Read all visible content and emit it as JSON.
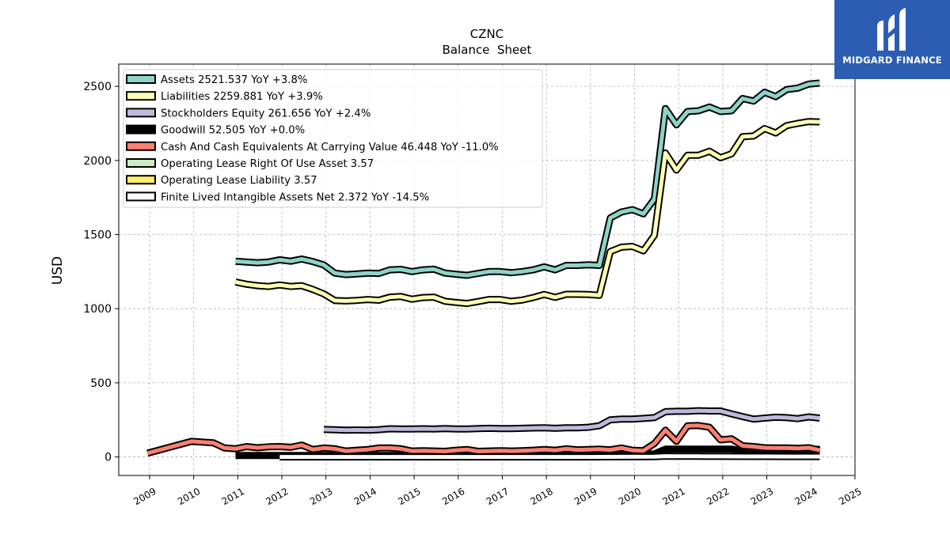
{
  "chart_data": {
    "type": "line",
    "title": "CZNC",
    "subtitle": "Balance  Sheet",
    "ylabel": "USD",
    "xlabel": "",
    "xlim": [
      2008.3,
      2025.0
    ],
    "ylim": [
      -125,
      2650
    ],
    "x_ticks": [
      "2009",
      "2010",
      "2011",
      "2012",
      "2013",
      "2014",
      "2015",
      "2016",
      "2017",
      "2018",
      "2019",
      "2020",
      "2021",
      "2022",
      "2023",
      "2024",
      "2025"
    ],
    "y_ticks": [
      0,
      500,
      1000,
      1500,
      2000,
      2500
    ],
    "grid": true,
    "legend_position": "top-left",
    "series": [
      {
        "name": "Assets  2521.537 YoY +3.8%",
        "color": "#8dd3c7",
        "points": [
          [
            2010.95,
            1320
          ],
          [
            2011.2,
            1315
          ],
          [
            2011.45,
            1310
          ],
          [
            2011.7,
            1315
          ],
          [
            2011.95,
            1330
          ],
          [
            2012.2,
            1320
          ],
          [
            2012.45,
            1335
          ],
          [
            2012.7,
            1318
          ],
          [
            2012.95,
            1295
          ],
          [
            2013.2,
            1240
          ],
          [
            2013.45,
            1230
          ],
          [
            2013.7,
            1235
          ],
          [
            2013.95,
            1240
          ],
          [
            2014.2,
            1238
          ],
          [
            2014.45,
            1262
          ],
          [
            2014.7,
            1265
          ],
          [
            2014.95,
            1250
          ],
          [
            2015.2,
            1262
          ],
          [
            2015.45,
            1266
          ],
          [
            2015.7,
            1240
          ],
          [
            2015.95,
            1232
          ],
          [
            2016.2,
            1225
          ],
          [
            2016.45,
            1238
          ],
          [
            2016.7,
            1250
          ],
          [
            2016.95,
            1250
          ],
          [
            2017.2,
            1243
          ],
          [
            2017.45,
            1250
          ],
          [
            2017.7,
            1262
          ],
          [
            2017.95,
            1282
          ],
          [
            2018.2,
            1262
          ],
          [
            2018.45,
            1292
          ],
          [
            2018.7,
            1292
          ],
          [
            2018.95,
            1296
          ],
          [
            2019.2,
            1292
          ],
          [
            2019.45,
            1612
          ],
          [
            2019.7,
            1652
          ],
          [
            2019.95,
            1668
          ],
          [
            2020.2,
            1640
          ],
          [
            2020.45,
            1740
          ],
          [
            2020.7,
            2350
          ],
          [
            2020.95,
            2240
          ],
          [
            2021.2,
            2330
          ],
          [
            2021.45,
            2335
          ],
          [
            2021.7,
            2360
          ],
          [
            2021.95,
            2330
          ],
          [
            2022.2,
            2335
          ],
          [
            2022.45,
            2418
          ],
          [
            2022.7,
            2400
          ],
          [
            2022.95,
            2460
          ],
          [
            2023.2,
            2430
          ],
          [
            2023.45,
            2478
          ],
          [
            2023.7,
            2488
          ],
          [
            2023.95,
            2515
          ],
          [
            2024.2,
            2522
          ]
        ]
      },
      {
        "name": "Liabilities  2259.881 YoY +3.9%",
        "color": "#ffffb3",
        "points": [
          [
            2010.95,
            1180
          ],
          [
            2011.2,
            1165
          ],
          [
            2011.45,
            1155
          ],
          [
            2011.7,
            1150
          ],
          [
            2011.95,
            1160
          ],
          [
            2012.2,
            1150
          ],
          [
            2012.45,
            1155
          ],
          [
            2012.7,
            1130
          ],
          [
            2012.95,
            1100
          ],
          [
            2013.2,
            1055
          ],
          [
            2013.45,
            1052
          ],
          [
            2013.7,
            1056
          ],
          [
            2013.95,
            1062
          ],
          [
            2014.2,
            1057
          ],
          [
            2014.45,
            1078
          ],
          [
            2014.7,
            1082
          ],
          [
            2014.95,
            1064
          ],
          [
            2015.2,
            1075
          ],
          [
            2015.45,
            1078
          ],
          [
            2015.7,
            1050
          ],
          [
            2015.95,
            1042
          ],
          [
            2016.2,
            1035
          ],
          [
            2016.45,
            1048
          ],
          [
            2016.7,
            1062
          ],
          [
            2016.95,
            1062
          ],
          [
            2017.2,
            1050
          ],
          [
            2017.45,
            1058
          ],
          [
            2017.7,
            1075
          ],
          [
            2017.95,
            1096
          ],
          [
            2018.2,
            1076
          ],
          [
            2018.45,
            1097
          ],
          [
            2018.7,
            1097
          ],
          [
            2018.95,
            1096
          ],
          [
            2019.2,
            1090
          ],
          [
            2019.45,
            1385
          ],
          [
            2019.7,
            1415
          ],
          [
            2019.95,
            1420
          ],
          [
            2020.2,
            1390
          ],
          [
            2020.45,
            1495
          ],
          [
            2020.7,
            2050
          ],
          [
            2020.95,
            1935
          ],
          [
            2021.2,
            2035
          ],
          [
            2021.45,
            2035
          ],
          [
            2021.7,
            2062
          ],
          [
            2021.95,
            2018
          ],
          [
            2022.2,
            2045
          ],
          [
            2022.45,
            2160
          ],
          [
            2022.7,
            2165
          ],
          [
            2022.95,
            2215
          ],
          [
            2023.2,
            2185
          ],
          [
            2023.45,
            2235
          ],
          [
            2023.7,
            2250
          ],
          [
            2023.95,
            2262
          ],
          [
            2024.2,
            2260
          ]
        ]
      },
      {
        "name": "Stockholders Equity  261.656 YoY +2.4%",
        "color": "#bebada",
        "points": [
          [
            2012.95,
            185
          ],
          [
            2013.2,
            183
          ],
          [
            2013.45,
            180
          ],
          [
            2013.7,
            182
          ],
          [
            2013.95,
            181
          ],
          [
            2014.2,
            184
          ],
          [
            2014.45,
            190
          ],
          [
            2014.7,
            188
          ],
          [
            2014.95,
            189
          ],
          [
            2015.2,
            190
          ],
          [
            2015.45,
            189
          ],
          [
            2015.7,
            191
          ],
          [
            2015.95,
            188
          ],
          [
            2016.2,
            189
          ],
          [
            2016.45,
            191
          ],
          [
            2016.7,
            193
          ],
          [
            2016.95,
            191
          ],
          [
            2017.2,
            191
          ],
          [
            2017.45,
            193
          ],
          [
            2017.7,
            195
          ],
          [
            2017.95,
            196
          ],
          [
            2018.2,
            193
          ],
          [
            2018.45,
            196
          ],
          [
            2018.7,
            196
          ],
          [
            2018.95,
            200
          ],
          [
            2019.2,
            210
          ],
          [
            2019.45,
            250
          ],
          [
            2019.7,
            255
          ],
          [
            2019.95,
            255
          ],
          [
            2020.2,
            260
          ],
          [
            2020.45,
            265
          ],
          [
            2020.7,
            305
          ],
          [
            2020.95,
            308
          ],
          [
            2021.2,
            308
          ],
          [
            2021.45,
            312
          ],
          [
            2021.7,
            310
          ],
          [
            2021.95,
            310
          ],
          [
            2022.2,
            290
          ],
          [
            2022.45,
            272
          ],
          [
            2022.7,
            255
          ],
          [
            2022.95,
            262
          ],
          [
            2023.2,
            268
          ],
          [
            2023.45,
            265
          ],
          [
            2023.7,
            258
          ],
          [
            2023.95,
            270
          ],
          [
            2024.2,
            262
          ]
        ]
      },
      {
        "name": "Goodwill  52.505 YoY +0.0%",
        "color": "#000000",
        "points": [
          [
            2010.95,
            10
          ],
          [
            2011.45,
            10
          ],
          [
            2011.95,
            10
          ],
          [
            2012.45,
            10
          ],
          [
            2012.95,
            10
          ],
          [
            2013.95,
            10
          ],
          [
            2014.95,
            10
          ],
          [
            2015.95,
            10
          ],
          [
            2016.95,
            10
          ],
          [
            2017.95,
            10
          ],
          [
            2018.95,
            10
          ],
          [
            2019.95,
            12
          ],
          [
            2020.45,
            20
          ],
          [
            2020.7,
            52
          ],
          [
            2020.95,
            52.5
          ],
          [
            2021.45,
            52.5
          ],
          [
            2021.95,
            52.5
          ],
          [
            2022.2,
            52.5
          ],
          [
            2022.45,
            40
          ],
          [
            2022.95,
            40
          ],
          [
            2023.45,
            40
          ],
          [
            2023.95,
            45
          ],
          [
            2024.2,
            52.5
          ]
        ]
      },
      {
        "name": "Cash And Cash Equivalents At Carrying Value  46.448 YoY -11.0%",
        "color": "#fb8072",
        "points": [
          [
            2008.95,
            25
          ],
          [
            2009.45,
            65
          ],
          [
            2009.95,
            105
          ],
          [
            2010.45,
            95
          ],
          [
            2010.7,
            60
          ],
          [
            2010.95,
            55
          ],
          [
            2011.2,
            70
          ],
          [
            2011.45,
            62
          ],
          [
            2011.7,
            68
          ],
          [
            2011.95,
            70
          ],
          [
            2012.2,
            65
          ],
          [
            2012.45,
            80
          ],
          [
            2012.7,
            50
          ],
          [
            2012.95,
            60
          ],
          [
            2013.2,
            55
          ],
          [
            2013.45,
            40
          ],
          [
            2013.7,
            45
          ],
          [
            2013.95,
            50
          ],
          [
            2014.2,
            60
          ],
          [
            2014.45,
            60
          ],
          [
            2014.7,
            55
          ],
          [
            2014.95,
            40
          ],
          [
            2015.2,
            42
          ],
          [
            2015.45,
            40
          ],
          [
            2015.7,
            38
          ],
          [
            2015.95,
            45
          ],
          [
            2016.2,
            50
          ],
          [
            2016.45,
            38
          ],
          [
            2016.7,
            40
          ],
          [
            2016.95,
            42
          ],
          [
            2017.2,
            40
          ],
          [
            2017.45,
            42
          ],
          [
            2017.7,
            45
          ],
          [
            2017.95,
            50
          ],
          [
            2018.2,
            45
          ],
          [
            2018.45,
            55
          ],
          [
            2018.7,
            48
          ],
          [
            2018.95,
            50
          ],
          [
            2019.2,
            52
          ],
          [
            2019.45,
            48
          ],
          [
            2019.7,
            60
          ],
          [
            2019.95,
            45
          ],
          [
            2020.2,
            42
          ],
          [
            2020.45,
            90
          ],
          [
            2020.7,
            180
          ],
          [
            2020.95,
            105
          ],
          [
            2021.2,
            210
          ],
          [
            2021.45,
            212
          ],
          [
            2021.7,
            200
          ],
          [
            2021.95,
            115
          ],
          [
            2022.2,
            122
          ],
          [
            2022.45,
            75
          ],
          [
            2022.7,
            70
          ],
          [
            2022.95,
            62
          ],
          [
            2023.2,
            60
          ],
          [
            2023.45,
            60
          ],
          [
            2023.7,
            58
          ],
          [
            2023.95,
            62
          ],
          [
            2024.2,
            46
          ]
        ]
      },
      {
        "name": "Operating Lease Right Of Use Asset  3.57",
        "color": "#ccebc5",
        "points": []
      },
      {
        "name": "Operating Lease Liability  3.57",
        "color": "#ffed6f",
        "points": []
      },
      {
        "name": "Finite Lived Intangible Assets Net  2.372 YoY -14.5%",
        "color": "#ffffff",
        "points": [
          [
            2011.95,
            0
          ],
          [
            2012.95,
            0
          ],
          [
            2013.95,
            0
          ],
          [
            2014.95,
            0
          ],
          [
            2015.95,
            0
          ],
          [
            2016.95,
            0
          ],
          [
            2017.95,
            0
          ],
          [
            2018.95,
            0
          ],
          [
            2019.95,
            1
          ],
          [
            2020.45,
            2
          ],
          [
            2020.7,
            5
          ],
          [
            2020.95,
            4.5
          ],
          [
            2021.45,
            4
          ],
          [
            2021.95,
            3.5
          ],
          [
            2022.45,
            3.2
          ],
          [
            2022.95,
            3
          ],
          [
            2023.45,
            2.8
          ],
          [
            2023.95,
            2.6
          ],
          [
            2024.2,
            2.372
          ]
        ]
      }
    ]
  },
  "logo": {
    "text": "MIDGARD FINANCE"
  }
}
